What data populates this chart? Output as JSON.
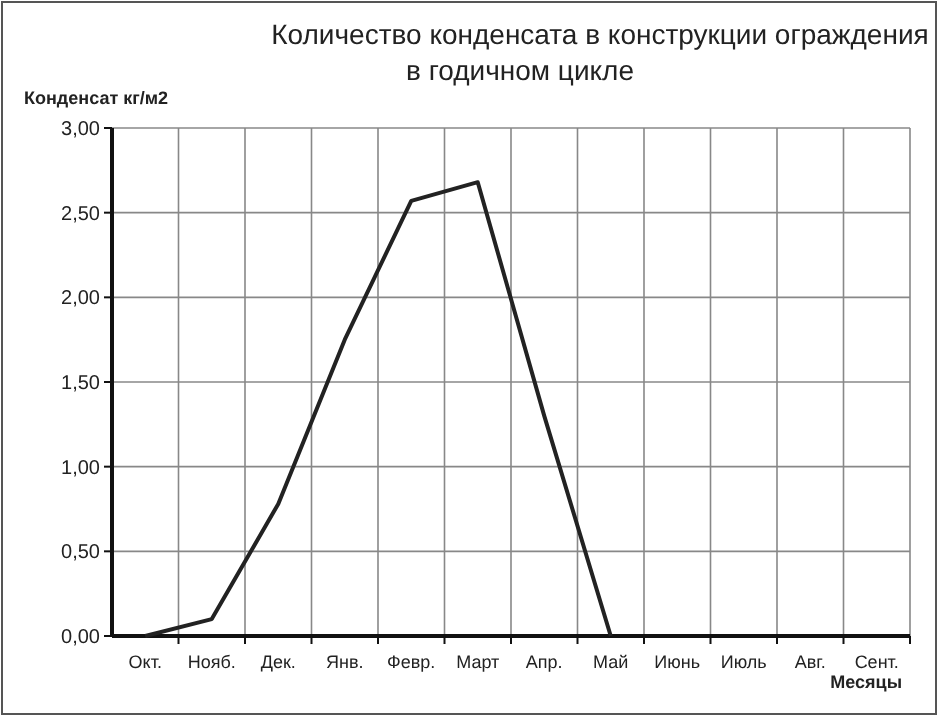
{
  "chart_data": {
    "type": "line",
    "title": "Количество конденсата в конструкции ограждения\nв годичном цикле",
    "ylabel": "Конденсат кг/м2",
    "xlabel": "Месяцы",
    "categories": [
      "Окт.",
      "Нояб.",
      "Дек.",
      "Янв.",
      "Февр.",
      "Март",
      "Апр.",
      "Май",
      "Июнь",
      "Июль",
      "Авг.",
      "Сент."
    ],
    "series": [
      {
        "color": "#222222",
        "values": [
          0,
          0.1,
          0.78,
          1.75,
          2.57,
          2.68,
          1.3,
          0,
          null,
          null,
          null,
          null
        ]
      }
    ],
    "ylim": [
      0,
      3
    ],
    "yticks": [
      {
        "value": 0,
        "label": "0,00"
      },
      {
        "value": 0.5,
        "label": "0,50"
      },
      {
        "value": 1,
        "label": "1,00"
      },
      {
        "value": 1.5,
        "label": "1,50"
      },
      {
        "value": 2,
        "label": "2,00"
      },
      {
        "value": 2.5,
        "label": "2,50"
      },
      {
        "value": 3,
        "label": "3,00"
      }
    ],
    "grid": true,
    "marker": "none",
    "line_style": "solid"
  }
}
